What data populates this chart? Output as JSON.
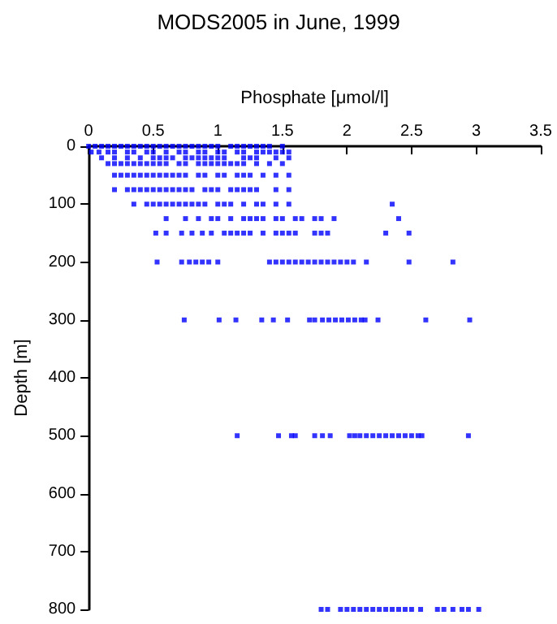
{
  "chart_data": {
    "type": "scatter",
    "title": "MODS2005 in June, 1999",
    "xlabel": "Phosphate [μmol/l]",
    "ylabel": "Depth [m]",
    "xlim": [
      0,
      3.5
    ],
    "xticks": [
      0,
      0.5,
      1,
      1.5,
      2,
      2.5,
      3,
      3.5
    ],
    "ylim": [
      800,
      0
    ],
    "yticks": [
      0,
      100,
      200,
      300,
      400,
      500,
      600,
      700,
      800
    ],
    "grid": false,
    "marker": "square",
    "series": [
      {
        "color": "#0000ff",
        "x": [
          0,
          0.05,
          0.1,
          0.15,
          0.2,
          0.25,
          0.3,
          0.35,
          0.4,
          0.45,
          0.5,
          0.55,
          0.6,
          0.65,
          0.7,
          0.75,
          0.8,
          0.85,
          0.9,
          0.95,
          1.0,
          1.1,
          1.15,
          1.2,
          1.25,
          1.3,
          1.35,
          1.4,
          1.5,
          0.02,
          0.08,
          0.15,
          0.2,
          0.3,
          0.35,
          0.45,
          0.5,
          0.6,
          0.7,
          0.75,
          0.85,
          0.9,
          1.0,
          1.05,
          1.15,
          1.2,
          1.3,
          1.35,
          1.4,
          1.45,
          1.5,
          1.55,
          0.1,
          0.2,
          0.3,
          0.4,
          0.5,
          0.55,
          0.6,
          0.65,
          0.75,
          0.8,
          0.85,
          0.9,
          0.95,
          1.0,
          1.05,
          1.2,
          1.25,
          1.3,
          1.45,
          1.55,
          0.15,
          0.2,
          0.25,
          0.3,
          0.35,
          0.4,
          0.45,
          0.5,
          0.55,
          0.6,
          0.7,
          0.75,
          0.85,
          0.9,
          0.95,
          1.0,
          1.05,
          1.1,
          1.15,
          1.2,
          1.3,
          1.4,
          1.5,
          0.2,
          0.25,
          0.3,
          0.35,
          0.4,
          0.45,
          0.5,
          0.55,
          0.6,
          0.65,
          0.7,
          0.75,
          0.85,
          0.9,
          1.0,
          1.05,
          1.15,
          1.2,
          1.25,
          1.35,
          1.45,
          1.55,
          0.2,
          0.3,
          0.35,
          0.4,
          0.45,
          0.5,
          0.55,
          0.6,
          0.65,
          0.7,
          0.75,
          0.8,
          0.9,
          0.95,
          1.0,
          1.1,
          1.15,
          1.2,
          1.25,
          1.3,
          1.45,
          1.55,
          0.35,
          0.45,
          0.5,
          0.55,
          0.6,
          0.65,
          0.7,
          0.75,
          0.8,
          0.85,
          0.9,
          1.0,
          1.05,
          1.1,
          1.2,
          1.3,
          1.35,
          1.45,
          1.55,
          2.35,
          0.6,
          0.75,
          0.85,
          0.95,
          1.0,
          1.1,
          1.2,
          1.25,
          1.3,
          1.35,
          1.45,
          1.5,
          1.6,
          1.65,
          1.75,
          1.8,
          1.9,
          2.4,
          0.52,
          0.6,
          0.72,
          0.8,
          0.88,
          0.95,
          1.05,
          1.1,
          1.15,
          1.2,
          1.25,
          1.35,
          1.45,
          1.5,
          1.55,
          1.6,
          1.75,
          1.8,
          1.85,
          2.3,
          2.48,
          0.53,
          0.72,
          0.78,
          0.83,
          0.88,
          0.93,
          1.0,
          1.4,
          1.45,
          1.5,
          1.55,
          1.6,
          1.65,
          1.7,
          1.75,
          1.8,
          1.85,
          1.9,
          1.95,
          2.0,
          2.05,
          2.15,
          2.48,
          2.82,
          0.74,
          1.01,
          1.14,
          1.34,
          1.43,
          1.54,
          1.71,
          1.75,
          1.81,
          1.86,
          1.91,
          1.96,
          2.01,
          2.06,
          2.11,
          2.14,
          2.24,
          2.61,
          2.95,
          1.15,
          1.47,
          1.57,
          1.6,
          1.75,
          1.81,
          1.87,
          2.02,
          2.06,
          2.1,
          2.15,
          2.2,
          2.25,
          2.3,
          2.35,
          2.4,
          2.45,
          2.5,
          2.55,
          2.58,
          2.94,
          1.8,
          1.85,
          1.95,
          2.0,
          2.05,
          2.1,
          2.15,
          2.2,
          2.25,
          2.3,
          2.35,
          2.4,
          2.45,
          2.5,
          2.57,
          2.7,
          2.75,
          2.82,
          2.89,
          2.94,
          3.02
        ],
        "values": [
          0,
          0,
          0,
          0,
          0,
          0,
          0,
          0,
          0,
          0,
          0,
          0,
          0,
          0,
          0,
          0,
          0,
          0,
          0,
          0,
          0,
          0,
          0,
          0,
          0,
          0,
          0,
          0,
          0,
          10,
          10,
          10,
          10,
          10,
          10,
          10,
          10,
          10,
          10,
          10,
          10,
          10,
          10,
          10,
          10,
          10,
          10,
          10,
          10,
          10,
          10,
          10,
          20,
          20,
          20,
          20,
          20,
          20,
          20,
          20,
          20,
          20,
          20,
          20,
          20,
          20,
          20,
          20,
          20,
          20,
          20,
          20,
          30,
          30,
          30,
          30,
          30,
          30,
          30,
          30,
          30,
          30,
          30,
          30,
          30,
          30,
          30,
          30,
          30,
          30,
          30,
          30,
          30,
          30,
          30,
          50,
          50,
          50,
          50,
          50,
          50,
          50,
          50,
          50,
          50,
          50,
          50,
          50,
          50,
          50,
          50,
          50,
          50,
          50,
          50,
          50,
          50,
          75,
          75,
          75,
          75,
          75,
          75,
          75,
          75,
          75,
          75,
          75,
          75,
          75,
          75,
          75,
          75,
          75,
          75,
          75,
          75,
          75,
          75,
          100,
          100,
          100,
          100,
          100,
          100,
          100,
          100,
          100,
          100,
          100,
          100,
          100,
          100,
          100,
          100,
          100,
          100,
          100,
          100,
          125,
          125,
          125,
          125,
          125,
          125,
          125,
          125,
          125,
          125,
          125,
          125,
          125,
          125,
          125,
          125,
          125,
          125,
          150,
          150,
          150,
          150,
          150,
          150,
          150,
          150,
          150,
          150,
          150,
          150,
          150,
          150,
          150,
          150,
          150,
          150,
          150,
          150,
          150,
          200,
          200,
          200,
          200,
          200,
          200,
          200,
          200,
          200,
          200,
          200,
          200,
          200,
          200,
          200,
          200,
          200,
          200,
          200,
          200,
          200,
          200,
          200,
          200,
          300,
          300,
          300,
          300,
          300,
          300,
          300,
          300,
          300,
          300,
          300,
          300,
          300,
          300,
          300,
          300,
          300,
          300,
          300,
          500,
          500,
          500,
          500,
          500,
          500,
          500,
          500,
          500,
          500,
          500,
          500,
          500,
          500,
          500,
          500,
          500,
          500,
          500,
          500,
          500,
          800,
          800,
          800,
          800,
          800,
          800,
          800,
          800,
          800,
          800,
          800,
          800,
          800,
          800,
          800,
          800,
          800,
          800,
          800,
          800,
          800
        ]
      }
    ]
  }
}
